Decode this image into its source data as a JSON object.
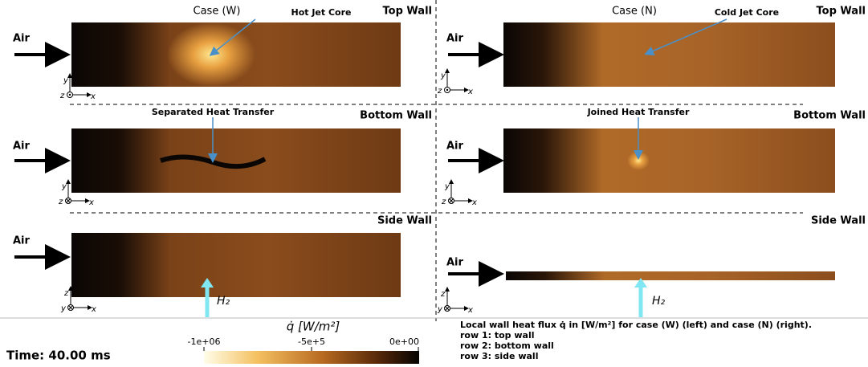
{
  "panels": [
    {
      "case": "Case (W)",
      "wall": "Top Wall",
      "inlet": "Air",
      "annotation": "Hot Jet Core",
      "axes": [
        "y",
        "z",
        "x"
      ]
    },
    {
      "case": "Case (N)",
      "wall": "Top Wall",
      "inlet": "Air",
      "annotation": "Cold Jet Core",
      "axes": [
        "y",
        "z",
        "x"
      ]
    },
    {
      "wall": "Bottom Wall",
      "inlet": "Air",
      "annotation": "Separated Heat Transfer",
      "axes": [
        "y",
        "z",
        "x"
      ]
    },
    {
      "wall": "Bottom Wall",
      "inlet": "Air",
      "annotation": "Joined Heat Transfer",
      "axes": [
        "y",
        "z",
        "x"
      ]
    },
    {
      "wall": "Side Wall",
      "inlet": "Air",
      "injection": "H₂",
      "axes": [
        "z",
        "y",
        "x"
      ]
    },
    {
      "wall": "Side Wall",
      "inlet": "Air",
      "injection": "H₂",
      "axes": [
        "z",
        "y",
        "x"
      ]
    }
  ],
  "colorbar": {
    "label": "q̇ [W/m²]",
    "ticks": [
      "-1e+06",
      "-5e+5",
      "0e+00"
    ]
  },
  "time": "Time: 40.00 ms",
  "caption": {
    "title": "Local wall heat flux q̇ in [W/m²] for case (W) (left) and case (N) (right).",
    "rows": [
      "row 1: top wall",
      "row 2: bottom wall",
      "row 3: side wall"
    ]
  }
}
